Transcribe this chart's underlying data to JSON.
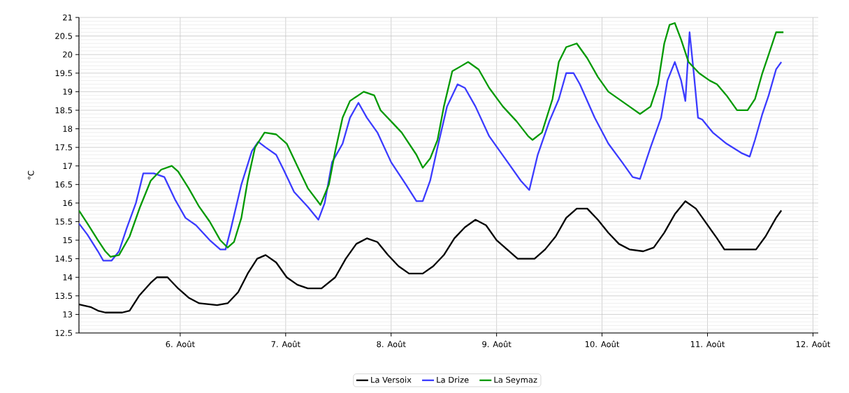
{
  "chart_data": {
    "type": "line",
    "ylabel": "°C",
    "xlim": [
      5.04,
      12.05
    ],
    "ylim": [
      12.5,
      21
    ],
    "xticks": [
      {
        "value": 6,
        "label": "6. Août"
      },
      {
        "value": 7,
        "label": "7. Août"
      },
      {
        "value": 8,
        "label": "8. Août"
      },
      {
        "value": 9,
        "label": "9. Août"
      },
      {
        "value": 10,
        "label": "10. Août"
      },
      {
        "value": 11,
        "label": "11. Août"
      },
      {
        "value": 12,
        "label": "12. Août"
      }
    ],
    "yticks": [
      12.5,
      13,
      13.5,
      14,
      14.5,
      15,
      15.5,
      16,
      16.5,
      17,
      17.5,
      18,
      18.5,
      19,
      19.5,
      20,
      20.5,
      21
    ],
    "grid": true,
    "legend": "bottom",
    "marker": "none",
    "line_style": "solid",
    "series": [
      {
        "name": "La Versoix",
        "color": "#000000",
        "x": [
          5.04,
          5.15,
          5.22,
          5.29,
          5.45,
          5.52,
          5.61,
          5.72,
          5.78,
          5.88,
          5.98,
          6.08,
          6.18,
          6.35,
          6.45,
          6.55,
          6.64,
          6.73,
          6.81,
          6.91,
          7.01,
          7.11,
          7.21,
          7.34,
          7.47,
          7.57,
          7.67,
          7.77,
          7.87,
          7.97,
          8.07,
          8.17,
          8.3,
          8.4,
          8.5,
          8.6,
          8.7,
          8.8,
          8.9,
          9.0,
          9.1,
          9.2,
          9.36,
          9.46,
          9.56,
          9.66,
          9.76,
          9.86,
          9.96,
          10.06,
          10.16,
          10.26,
          10.39,
          10.49,
          10.59,
          10.69,
          10.79,
          10.89,
          10.99,
          11.09,
          11.16,
          11.33,
          11.46,
          11.55,
          11.65,
          11.7
        ],
        "values": [
          13.27,
          13.2,
          13.1,
          13.05,
          13.05,
          13.1,
          13.5,
          13.85,
          14.0,
          14.0,
          13.7,
          13.45,
          13.3,
          13.25,
          13.3,
          13.6,
          14.1,
          14.5,
          14.6,
          14.4,
          14.0,
          13.8,
          13.7,
          13.7,
          14.0,
          14.5,
          14.9,
          15.05,
          14.95,
          14.6,
          14.3,
          14.1,
          14.1,
          14.3,
          14.6,
          15.05,
          15.35,
          15.55,
          15.4,
          15.0,
          14.75,
          14.5,
          14.5,
          14.75,
          15.1,
          15.6,
          15.85,
          15.85,
          15.55,
          15.2,
          14.9,
          14.75,
          14.7,
          14.8,
          15.2,
          15.7,
          16.05,
          15.85,
          15.45,
          15.05,
          14.75,
          14.75,
          14.75,
          15.1,
          15.6,
          15.8
        ]
      },
      {
        "name": "La Drize",
        "color": "#3b3bff",
        "x": [
          5.04,
          5.12,
          5.22,
          5.27,
          5.35,
          5.42,
          5.49,
          5.58,
          5.65,
          5.75,
          5.85,
          5.95,
          6.05,
          6.15,
          6.28,
          6.38,
          6.43,
          6.48,
          6.58,
          6.68,
          6.74,
          6.81,
          6.91,
          6.98,
          7.08,
          7.21,
          7.31,
          7.37,
          7.44,
          7.54,
          7.61,
          7.69,
          7.77,
          7.87,
          8.0,
          8.14,
          8.24,
          8.3,
          8.37,
          8.44,
          8.53,
          8.63,
          8.7,
          8.8,
          8.93,
          9.03,
          9.13,
          9.23,
          9.31,
          9.39,
          9.5,
          9.59,
          9.66,
          9.73,
          9.79,
          9.93,
          10.06,
          10.19,
          10.29,
          10.36,
          10.46,
          10.56,
          10.62,
          10.69,
          10.75,
          10.79,
          10.83,
          10.87,
          10.91,
          10.95,
          11.05,
          11.18,
          11.32,
          11.4,
          11.45,
          11.52,
          11.58,
          11.65,
          11.7
        ],
        "values": [
          15.45,
          15.15,
          14.7,
          14.45,
          14.45,
          14.7,
          15.3,
          16.0,
          16.8,
          16.8,
          16.7,
          16.1,
          15.6,
          15.4,
          15.0,
          14.75,
          14.75,
          15.3,
          16.5,
          17.4,
          17.65,
          17.5,
          17.3,
          16.9,
          16.3,
          15.9,
          15.55,
          16.0,
          17.1,
          17.6,
          18.3,
          18.7,
          18.3,
          17.9,
          17.1,
          16.5,
          16.05,
          16.05,
          16.6,
          17.5,
          18.6,
          19.2,
          19.1,
          18.6,
          17.8,
          17.4,
          17.0,
          16.6,
          16.35,
          17.3,
          18.2,
          18.8,
          19.5,
          19.5,
          19.2,
          18.3,
          17.6,
          17.1,
          16.7,
          16.65,
          17.5,
          18.3,
          19.3,
          19.8,
          19.3,
          18.75,
          20.6,
          19.5,
          18.3,
          18.25,
          17.9,
          17.6,
          17.35,
          17.25,
          17.7,
          18.4,
          18.9,
          19.6,
          19.8
        ]
      },
      {
        "name": "La Seymaz",
        "color": "#009900",
        "x": [
          5.04,
          5.12,
          5.22,
          5.29,
          5.34,
          5.42,
          5.52,
          5.62,
          5.72,
          5.82,
          5.92,
          5.98,
          6.08,
          6.18,
          6.28,
          6.38,
          6.45,
          6.51,
          6.58,
          6.64,
          6.71,
          6.8,
          6.91,
          7.01,
          7.11,
          7.21,
          7.33,
          7.41,
          7.47,
          7.54,
          7.61,
          7.74,
          7.84,
          7.9,
          8.0,
          8.1,
          8.24,
          8.3,
          8.37,
          8.44,
          8.5,
          8.58,
          8.67,
          8.73,
          8.83,
          8.93,
          9.06,
          9.19,
          9.3,
          9.34,
          9.43,
          9.53,
          9.59,
          9.66,
          9.76,
          9.86,
          9.96,
          10.06,
          10.16,
          10.26,
          10.36,
          10.46,
          10.53,
          10.59,
          10.64,
          10.69,
          10.75,
          10.82,
          10.92,
          11.02,
          11.09,
          11.18,
          11.28,
          11.38,
          11.45,
          11.52,
          11.58,
          11.65,
          11.72
        ],
        "values": [
          15.8,
          15.45,
          15.0,
          14.7,
          14.55,
          14.6,
          15.1,
          15.9,
          16.6,
          16.9,
          17.0,
          16.85,
          16.4,
          15.9,
          15.5,
          15.0,
          14.8,
          14.95,
          15.6,
          16.6,
          17.5,
          17.9,
          17.85,
          17.6,
          17.0,
          16.4,
          15.95,
          16.5,
          17.4,
          18.3,
          18.75,
          19.0,
          18.9,
          18.5,
          18.2,
          17.9,
          17.3,
          16.95,
          17.2,
          17.7,
          18.6,
          19.55,
          19.7,
          19.8,
          19.6,
          19.1,
          18.6,
          18.2,
          17.8,
          17.7,
          17.9,
          18.8,
          19.8,
          20.2,
          20.3,
          19.9,
          19.4,
          19.0,
          18.8,
          18.6,
          18.4,
          18.6,
          19.2,
          20.3,
          20.8,
          20.85,
          20.4,
          19.8,
          19.5,
          19.3,
          19.2,
          18.9,
          18.5,
          18.5,
          18.8,
          19.5,
          20.0,
          20.6,
          20.6
        ]
      }
    ]
  }
}
